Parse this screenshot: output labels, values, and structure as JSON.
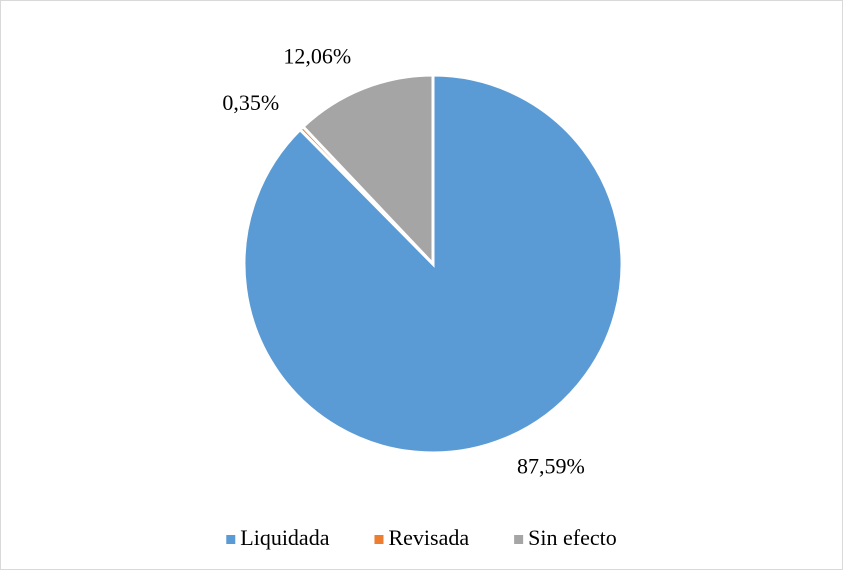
{
  "chart_data": {
    "type": "pie",
    "categories": [
      "Liquidada",
      "Revisada",
      "Sin efecto"
    ],
    "values": [
      87.59,
      0.35,
      12.06
    ],
    "value_labels": [
      "87,59%",
      "0,35%",
      "12,06%"
    ],
    "colors": [
      "#5b9bd5",
      "#ed7d31",
      "#a5a5a5"
    ],
    "legend": "bottom"
  }
}
